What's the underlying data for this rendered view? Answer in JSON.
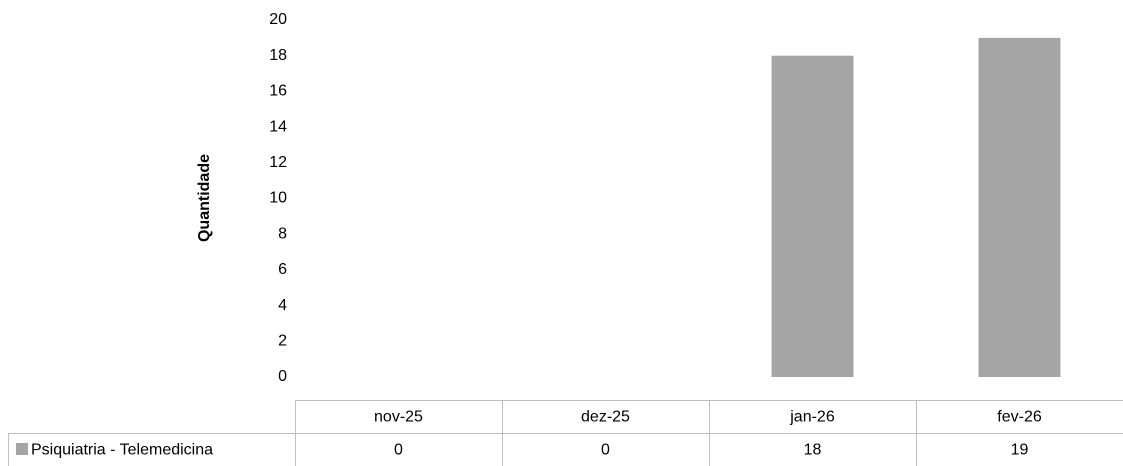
{
  "chart_data": {
    "type": "bar",
    "y_label": "Quantidade",
    "categories": [
      "nov-25",
      "dez-25",
      "jan-26",
      "fev-26"
    ],
    "series": [
      {
        "name": "Psiquiatria - Telemedicina",
        "color": "#a5a5a5",
        "values": [
          0,
          0,
          18,
          19
        ]
      }
    ],
    "ylim": [
      0,
      20
    ],
    "yticks": [
      0,
      2,
      4,
      6,
      8,
      10,
      12,
      14,
      16,
      18,
      20
    ],
    "grid": false,
    "data_table": true
  }
}
